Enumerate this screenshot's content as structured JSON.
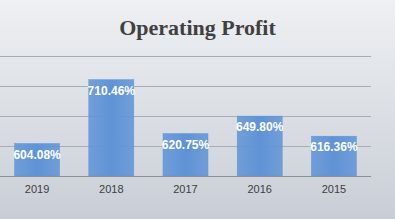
{
  "chart_data": {
    "type": "bar",
    "title": "Operating Profit",
    "categories": [
      "2019",
      "2018",
      "2017",
      "2016",
      "2015"
    ],
    "values": [
      604.08,
      710.46,
      620.75,
      649.8,
      616.36
    ],
    "value_labels": [
      "604.08%",
      "710.46%",
      "620.75%",
      "649.80%",
      "616.36%"
    ],
    "color": "#5f93d6",
    "ylim": [
      550,
      750
    ],
    "yticks": [
      550,
      600,
      650,
      700,
      750
    ],
    "grid": true,
    "data_labels": true,
    "tick_labels": "x"
  }
}
